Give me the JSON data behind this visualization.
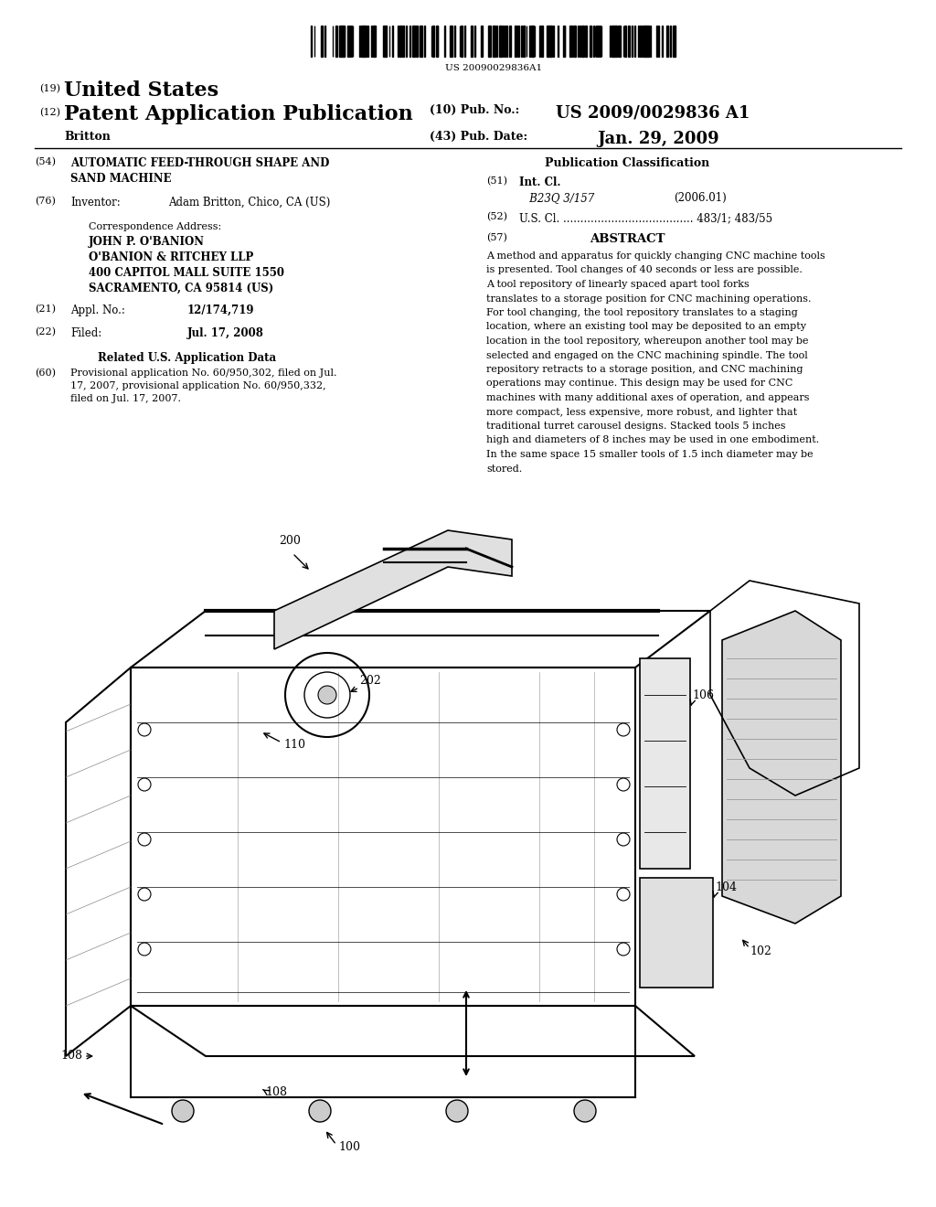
{
  "background_color": "#ffffff",
  "barcode_text": "US 20090029836A1",
  "header_19": "(19)",
  "header_19_text": "United States",
  "header_12": "(12)",
  "header_12_text": "Patent Application Publication",
  "header_name": "Britton",
  "header_10_label": "(10) Pub. No.:",
  "header_10_value": "US 2009/0029836 A1",
  "header_43_label": "(43) Pub. Date:",
  "header_43_value": "Jan. 29, 2009",
  "field_54_label": "(54)",
  "field_54_title": "AUTOMATIC FEED-THROUGH SHAPE AND\nSAND MACHINE",
  "field_76_label": "(76)",
  "field_76_title": "Inventor:",
  "field_76_value": "Adam Britton, Chico, CA (US)",
  "correspondence_label": "Correspondence Address:",
  "correspondence_lines": [
    "JOHN P. O'BANION",
    "O'BANION & RITCHEY LLP",
    "400 CAPITOL MALL SUITE 1550",
    "SACRAMENTO, CA 95814 (US)"
  ],
  "field_21_label": "(21)",
  "field_21_title": "Appl. No.:",
  "field_21_value": "12/174,719",
  "field_22_label": "(22)",
  "field_22_title": "Filed:",
  "field_22_value": "Jul. 17, 2008",
  "related_header": "Related U.S. Application Data",
  "field_60_label": "(60)",
  "field_60_text": "Provisional application No. 60/950,302, filed on Jul.\n17, 2007, provisional application No. 60/950,332,\nfiled on Jul. 17, 2007.",
  "pub_class_header": "Publication Classification",
  "field_51_label": "(51)",
  "field_51_title": "Int. Cl.",
  "field_51_class": "B23Q 3/157",
  "field_51_year": "(2006.01)",
  "field_52_label": "(52)",
  "field_52_title": "U.S. Cl.",
  "field_52_dots": "......................................",
  "field_52_value": "483/1; 483/55",
  "field_57_label": "(57)",
  "field_57_header": "ABSTRACT",
  "abstract_text": "A method and apparatus for quickly changing CNC machine tools is presented. Tool changes of 40 seconds or less are possible. A tool repository of linearly spaced apart tool forks translates to a storage position for CNC machining operations. For tool changing, the tool repository translates to a staging location, where an existing tool may be deposited to an empty location in the tool repository, whereupon another tool may be selected and engaged on the CNC machining spindle. The tool repository retracts to a storage position, and CNC machining operations may continue. This design may be used for CNC machines with many additional axes of operation, and appears more compact, less expensive, more robust, and lighter that traditional turret carousel designs. Stacked tools 5 inches high and diameters of 8 inches may be used in one embodiment. In the same space 15 smaller tools of 1.5 inch diameter may be stored.",
  "image_placeholder": true
}
